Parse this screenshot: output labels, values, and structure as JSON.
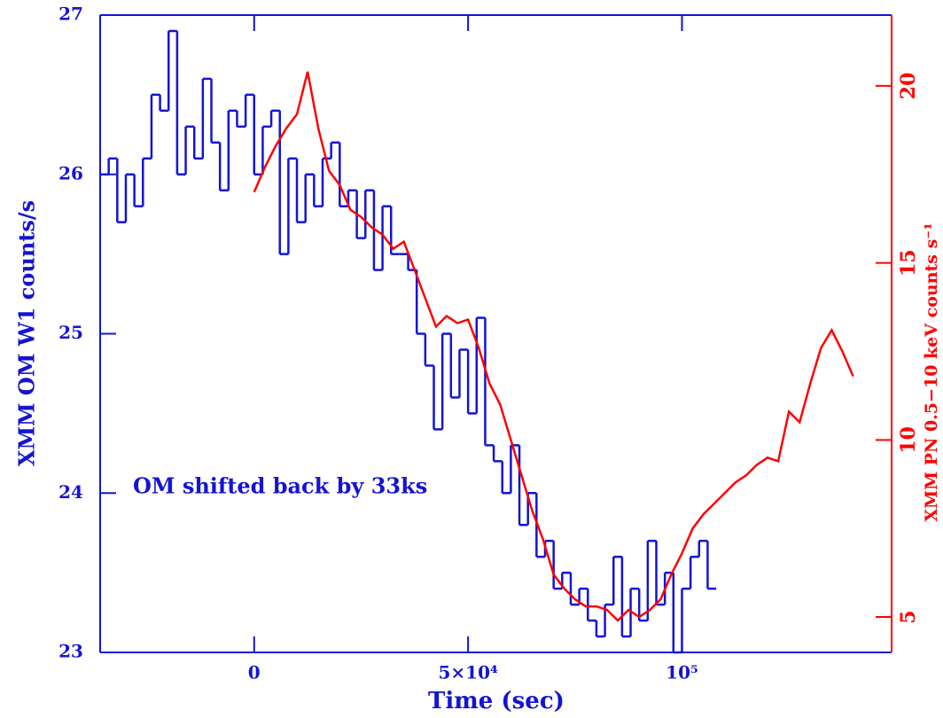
{
  "chart_data": {
    "type": "line",
    "xlabel": "Time (sec)",
    "ylabel": "XMM OM W1 counts/s",
    "y2label": "XMM PN 0.5−10 keV counts s⁻¹",
    "annotation": "OM shifted back by 33ks",
    "xlim": [
      -36000,
      149000
    ],
    "ylim": [
      23,
      27
    ],
    "y2lim": [
      4,
      22
    ],
    "xticks": [
      0,
      {
        "value": 50000,
        "label": "5×10⁴"
      },
      {
        "value": 100000,
        "label": "10⁵"
      }
    ],
    "yticks": [
      23,
      24,
      25,
      26,
      27
    ],
    "y2ticks": [
      5,
      10,
      15,
      20
    ],
    "series": [
      {
        "name": "OM",
        "color": "#1414d2",
        "drawstyle": "steps",
        "x": [
          -36000,
          -34000,
          -32000,
          -30000,
          -28000,
          -26000,
          -24000,
          -22000,
          -20000,
          -18000,
          -16000,
          -14000,
          -12000,
          -10000,
          -8000,
          -6000,
          -4000,
          -2000,
          0,
          2000,
          4000,
          6000,
          8000,
          10000,
          12000,
          14000,
          16000,
          18000,
          20000,
          22000,
          24000,
          26000,
          28000,
          30000,
          32000,
          34000,
          36000,
          38000,
          40000,
          42000,
          44000,
          46000,
          48000,
          50000,
          52000,
          54000,
          56000,
          58000,
          60000,
          62000,
          64000,
          66000,
          68000,
          70000,
          72000,
          74000,
          76000,
          78000,
          80000,
          82000,
          84000,
          86000,
          88000,
          90000,
          92000,
          94000,
          96000,
          98000,
          100000,
          102000,
          104000,
          106000
        ],
        "values": [
          26.0,
          26.1,
          25.7,
          26.0,
          25.8,
          26.1,
          26.5,
          26.4,
          26.9,
          26.0,
          26.3,
          26.1,
          26.6,
          26.2,
          25.9,
          26.4,
          26.3,
          26.5,
          26.0,
          26.3,
          26.4,
          25.5,
          26.1,
          25.7,
          26.0,
          25.8,
          26.1,
          26.2,
          25.8,
          25.9,
          25.6,
          25.9,
          25.4,
          25.8,
          25.5,
          25.5,
          25.4,
          25.0,
          24.8,
          24.4,
          25.0,
          24.6,
          24.9,
          24.5,
          25.1,
          24.3,
          24.2,
          24.0,
          24.3,
          23.8,
          24.0,
          23.6,
          23.7,
          23.4,
          23.5,
          23.3,
          23.4,
          23.2,
          23.1,
          23.3,
          23.6,
          23.1,
          23.4,
          23.2,
          23.7,
          23.3,
          23.5,
          23.0,
          23.4,
          23.6,
          23.7,
          23.4
        ]
      },
      {
        "name": "PN",
        "color": "#ff0000",
        "axis": "y2",
        "x": [
          0,
          2500,
          5000,
          7500,
          10000,
          12500,
          15000,
          17500,
          20000,
          22500,
          25000,
          27500,
          30000,
          32500,
          35000,
          37500,
          40000,
          42500,
          45000,
          47500,
          50000,
          52500,
          55000,
          57500,
          60000,
          62500,
          65000,
          67500,
          70000,
          72500,
          75000,
          77500,
          80000,
          82500,
          85000,
          87500,
          90000,
          92500,
          95000,
          97500,
          100000,
          102500,
          105000,
          107500,
          110000,
          112500,
          115000,
          117500,
          120000,
          122500,
          125000,
          127500,
          130000,
          132500,
          135000,
          137500,
          140000
        ],
        "values": [
          17.0,
          17.7,
          18.3,
          18.8,
          19.2,
          20.4,
          18.8,
          17.6,
          17.2,
          16.5,
          16.3,
          16.0,
          15.8,
          15.4,
          15.6,
          14.8,
          14.0,
          13.2,
          13.5,
          13.3,
          13.4,
          12.6,
          11.6,
          11.0,
          10.0,
          9.0,
          8.0,
          7.2,
          6.2,
          5.8,
          5.5,
          5.3,
          5.3,
          5.2,
          4.9,
          5.2,
          5.0,
          5.2,
          5.5,
          6.2,
          6.8,
          7.5,
          7.9,
          8.2,
          8.5,
          8.8,
          9.0,
          9.3,
          9.5,
          9.4,
          10.8,
          10.5,
          11.6,
          12.6,
          13.1,
          12.5,
          11.8
        ]
      }
    ]
  }
}
